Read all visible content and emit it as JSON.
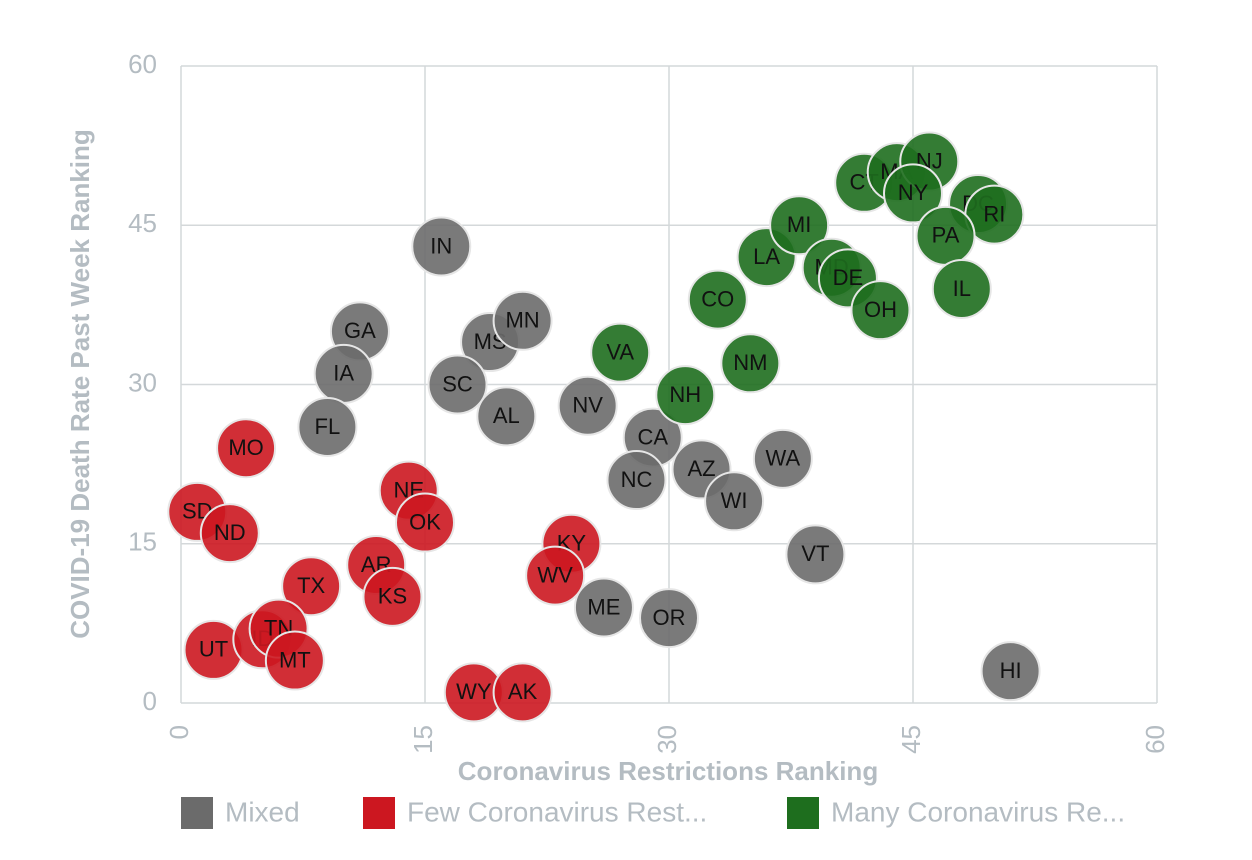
{
  "chart_data": {
    "type": "scatter",
    "x_label": "Coronavirus Restrictions Ranking",
    "y_label": "COVID-19 Death Rate Past Week Ranking",
    "xlim": [
      0,
      60
    ],
    "xticks": [
      0,
      15,
      30,
      45,
      60
    ],
    "ylim": [
      0,
      60
    ],
    "yticks": [
      0,
      15,
      30,
      45,
      60
    ],
    "grid": true,
    "series": [
      {
        "name": "Mixed",
        "color": "#6b6b6b",
        "labels": [
          "IN",
          "GA",
          "IA",
          "FL",
          "MS",
          "MN",
          "SC",
          "AL",
          "NV",
          "CA",
          "NC",
          "AZ",
          "WI",
          "WA",
          "VT",
          "ME",
          "OR",
          "HI"
        ],
        "x": [
          16,
          11,
          10,
          9,
          19,
          21,
          17,
          20,
          25,
          29,
          28,
          32,
          34,
          37,
          39,
          26,
          30,
          51
        ],
        "values": [
          43,
          35,
          31,
          26,
          34,
          36,
          30,
          27,
          28,
          25,
          21,
          22,
          19,
          23,
          14,
          9,
          8,
          3
        ]
      },
      {
        "name": "Few Coronavirus Rest...",
        "color": "#cc1720",
        "labels": [
          "MO",
          "SD",
          "ND",
          "NE",
          "OK",
          "TX",
          "AR",
          "KS",
          "UT",
          "ID",
          "TN",
          "MT",
          "WY",
          "AK",
          "KY",
          "WV"
        ],
        "x": [
          4,
          1,
          3,
          14,
          15,
          8,
          12,
          13,
          2,
          5,
          6,
          7,
          18,
          21,
          24,
          23
        ],
        "values": [
          24,
          18,
          16,
          20,
          17,
          11,
          13,
          10,
          5,
          6,
          7,
          4,
          1,
          1,
          15,
          12
        ]
      },
      {
        "name": "Many Coronavirus Re...",
        "color": "#1e6e1e",
        "labels": [
          "VA",
          "NH",
          "NM",
          "CO",
          "LA",
          "MI",
          "MD",
          "DE",
          "OH",
          "CT",
          "MA",
          "NJ",
          "NY",
          "DC",
          "RI",
          "PA",
          "IL"
        ],
        "x": [
          27,
          31,
          35,
          33,
          36,
          38,
          40,
          41,
          43,
          42,
          44,
          46,
          45,
          49,
          50,
          47,
          48
        ],
        "values": [
          33,
          29,
          32,
          38,
          42,
          45,
          41,
          40,
          37,
          49,
          50,
          51,
          48,
          47,
          46,
          44,
          39
        ]
      }
    ]
  }
}
